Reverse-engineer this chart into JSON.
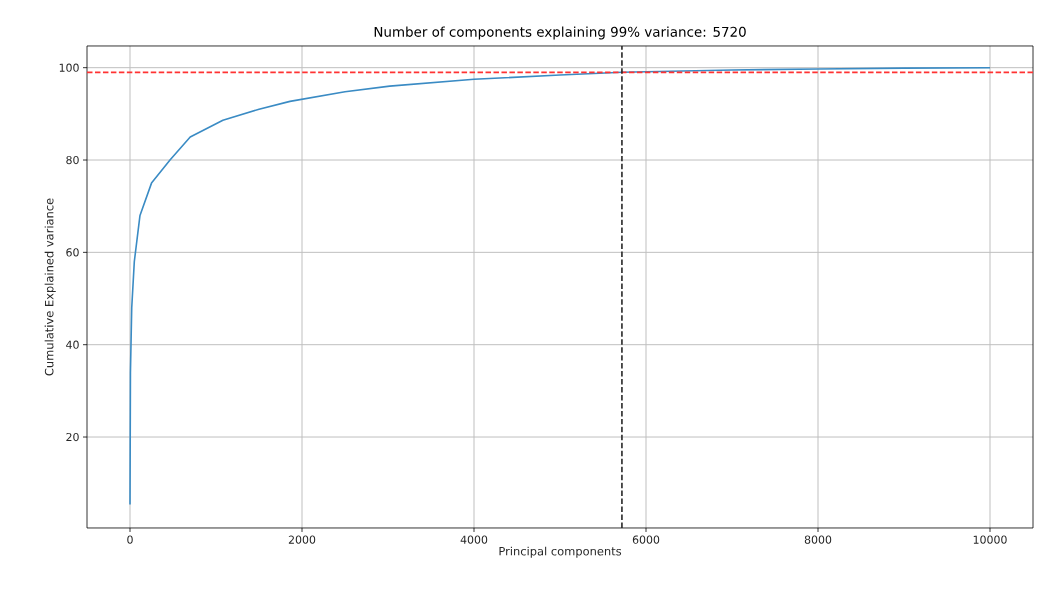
{
  "chart_data": {
    "type": "line",
    "title": "Number of components explaining 99% variance: 5720",
    "xlabel": "Principal components",
    "ylabel": "Cumulative Explained variance",
    "xlim": [
      -500,
      10500
    ],
    "ylim": [
      0.3,
      104.7
    ],
    "xticks": [
      0,
      2000,
      4000,
      6000,
      8000,
      10000
    ],
    "yticks": [
      20,
      40,
      60,
      80,
      100
    ],
    "grid": true,
    "series": [
      {
        "color": "#3a8bc4",
        "x": [
          0,
          5,
          20,
          50,
          116,
          250,
          465,
          700,
          1080,
          1500,
          1860,
          2500,
          3020,
          4000,
          5000,
          5720,
          7000,
          8000,
          9000,
          10000
        ],
        "values": [
          5.4,
          34,
          48,
          58,
          68,
          75,
          80,
          85,
          88.6,
          91,
          92.7,
          94.8,
          96,
          97.5,
          98.4,
          99,
          99.5,
          99.7,
          99.9,
          100
        ]
      }
    ],
    "ref_lines": [
      {
        "axis": "y",
        "value": 99,
        "color": "#ff3333",
        "line_style": "dashed"
      },
      {
        "axis": "x",
        "value": 5720,
        "color": "#262626",
        "line_style": "dashed"
      }
    ]
  }
}
